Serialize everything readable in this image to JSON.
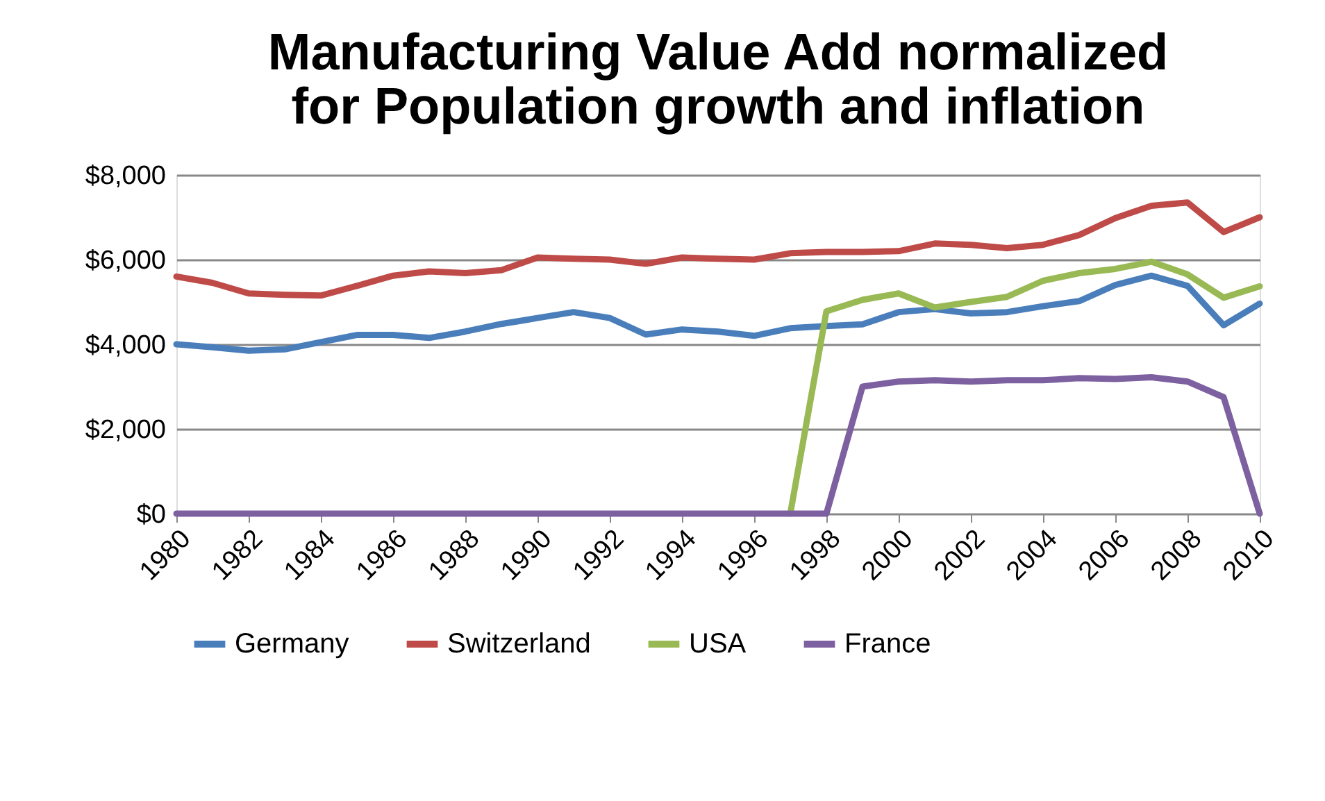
{
  "chart_data": {
    "type": "line",
    "title": "Manufacturing Value Add normalized\nfor Population growth and inflation",
    "x": [
      1980,
      1981,
      1982,
      1983,
      1984,
      1985,
      1986,
      1987,
      1988,
      1989,
      1990,
      1991,
      1992,
      1993,
      1994,
      1995,
      1996,
      1997,
      1998,
      1999,
      2000,
      2001,
      2002,
      2003,
      2004,
      2005,
      2006,
      2007,
      2008,
      2009,
      2010
    ],
    "series": [
      {
        "name": "Germany",
        "color": "#4a7ebb",
        "values": [
          4000,
          3930,
          3850,
          3880,
          4050,
          4220,
          4220,
          4150,
          4300,
          4480,
          4620,
          4760,
          4620,
          4230,
          4350,
          4300,
          4200,
          4380,
          4430,
          4470,
          4760,
          4830,
          4730,
          4760,
          4900,
          5020,
          5400,
          5620,
          5380,
          4450,
          4960
        ]
      },
      {
        "name": "Switzerland",
        "color": "#be4b48",
        "values": [
          5600,
          5450,
          5200,
          5170,
          5150,
          5380,
          5620,
          5720,
          5680,
          5750,
          6050,
          6020,
          6000,
          5900,
          6050,
          6020,
          6000,
          6150,
          6180,
          6180,
          6200,
          6380,
          6350,
          6270,
          6350,
          6580,
          6980,
          7270,
          7350,
          6650,
          7000
        ]
      },
      {
        "name": "USA",
        "color": "#98b954",
        "values": [
          null,
          null,
          null,
          null,
          null,
          null,
          null,
          null,
          null,
          null,
          null,
          null,
          null,
          null,
          null,
          null,
          null,
          0,
          4780,
          5050,
          5200,
          4870,
          5000,
          5120,
          5500,
          5680,
          5780,
          5950,
          5650,
          5100,
          5370
        ]
      },
      {
        "name": "France",
        "color": "#7d60a0",
        "values": [
          0,
          0,
          0,
          0,
          0,
          0,
          0,
          0,
          0,
          0,
          0,
          0,
          0,
          0,
          0,
          0,
          0,
          0,
          0,
          3000,
          3120,
          3150,
          3120,
          3150,
          3150,
          3200,
          3180,
          3220,
          3120,
          2750,
          0
        ]
      }
    ],
    "xlim": [
      1980,
      2010
    ],
    "xticks": [
      1980,
      1982,
      1984,
      1986,
      1988,
      1990,
      1992,
      1994,
      1996,
      1998,
      2000,
      2002,
      2004,
      2006,
      2008,
      2010
    ],
    "ylim": [
      0,
      8000
    ],
    "yticks": [
      {
        "value": 0,
        "label": "$0"
      },
      {
        "value": 2000,
        "label": "$2,000"
      },
      {
        "value": 4000,
        "label": "$4,000"
      },
      {
        "value": 6000,
        "label": "$6,000"
      },
      {
        "value": 8000,
        "label": "$8,000"
      }
    ],
    "grid": "y",
    "legend": "bottom",
    "marker": "none",
    "line_style": "solid"
  }
}
